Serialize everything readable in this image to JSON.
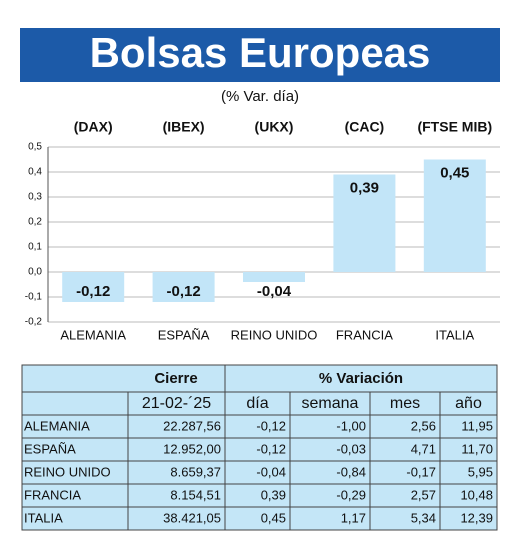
{
  "chart_data": {
    "type": "bar",
    "title": "Bolsas Europeas",
    "subtitle": "(% Var. día)",
    "index_names": [
      "(DAX)",
      "(IBEX)",
      "(UKX)",
      "(CAC)",
      "(FTSE MIB)"
    ],
    "categories": [
      "ALEMANIA",
      "ESPAÑA",
      "REINO UNIDO",
      "FRANCIA",
      "ITALIA"
    ],
    "values": [
      -0.12,
      -0.12,
      -0.04,
      0.39,
      0.45
    ],
    "value_labels": [
      "-0,12",
      "-0,12",
      "-0,04",
      "0,39",
      "0,45"
    ],
    "color": "#c2e5f8",
    "ylim": [
      -0.2,
      0.5
    ],
    "yticks": [
      {
        "value": -0.2,
        "label": "-0,2"
      },
      {
        "value": -0.1,
        "label": "-0,1"
      },
      {
        "value": 0,
        "label": "0,0"
      },
      {
        "value": 0.1,
        "label": "0,1"
      },
      {
        "value": 0.2,
        "label": "0,2"
      },
      {
        "value": 0.3,
        "label": "0,3"
      },
      {
        "value": 0.4,
        "label": "0,4"
      },
      {
        "value": 0.5,
        "label": "0,5"
      }
    ],
    "grid": true
  },
  "table": {
    "group_headers": [
      "Cierre",
      "% Variación"
    ],
    "columns": [
      "21-02-´25",
      "día",
      "semana",
      "mes",
      "año"
    ],
    "rows": [
      [
        "ALEMANIA",
        "22.287,56",
        "-0,12",
        "-1,00",
        "2,56",
        "11,95"
      ],
      [
        "ESPAÑA",
        "12.952,00",
        "-0,12",
        "-0,03",
        "4,71",
        "11,70"
      ],
      [
        "REINO UNIDO",
        "8.659,37",
        "-0,04",
        "-0,84",
        "-0,17",
        "5,95"
      ],
      [
        "FRANCIA",
        "8.154,51",
        "0,39",
        "-0,29",
        "2,57",
        "10,48"
      ],
      [
        "ITALIA",
        "38.421,05",
        "0,45",
        "1,17",
        "5,34",
        "12,39"
      ]
    ]
  }
}
